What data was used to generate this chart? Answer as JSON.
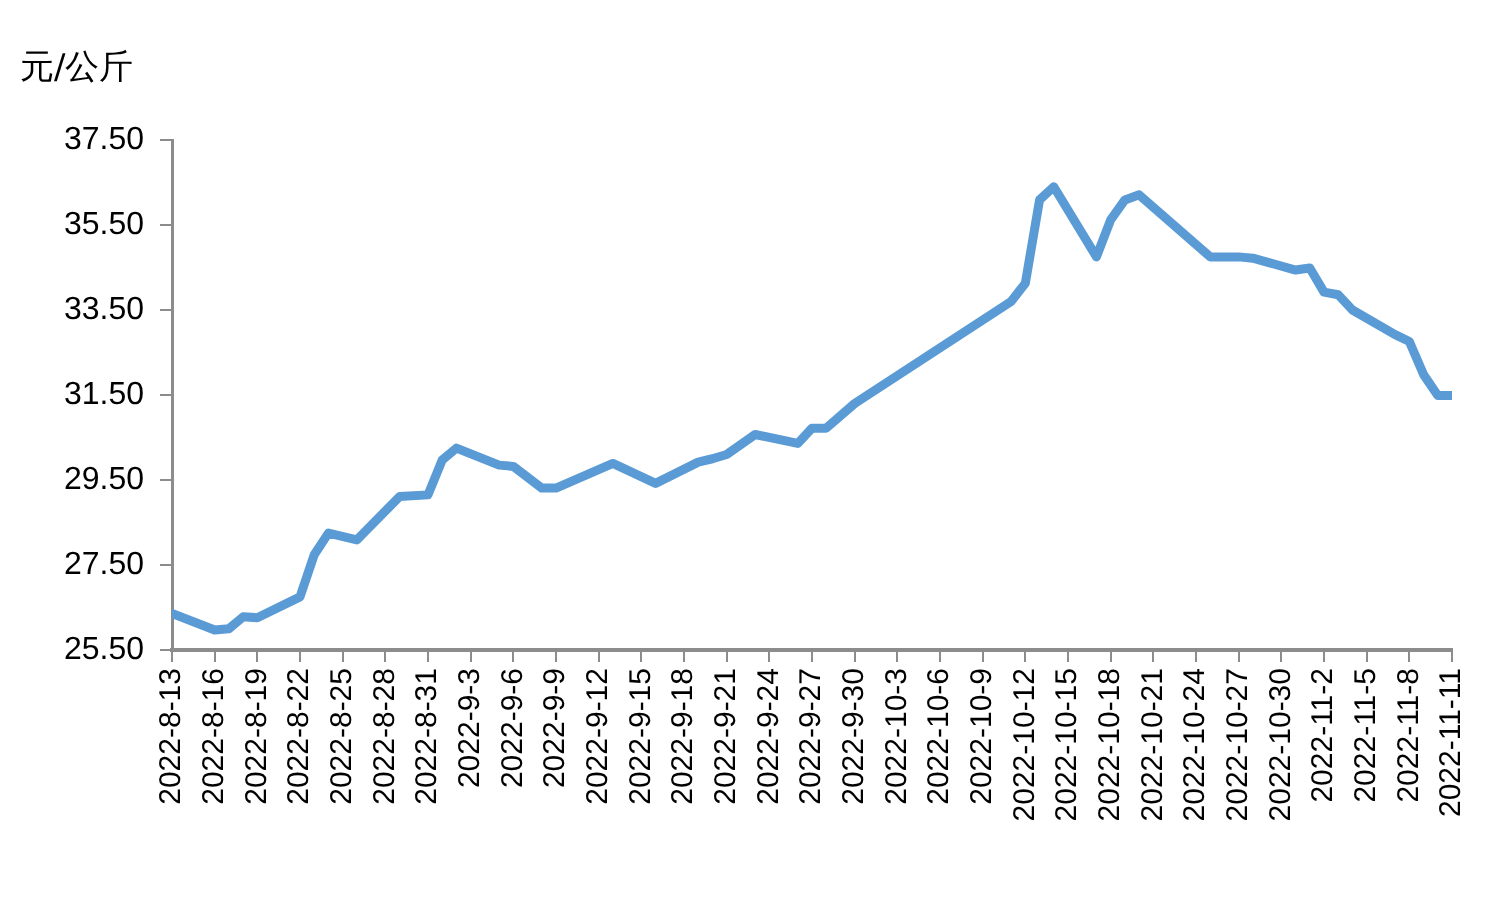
{
  "chart_data": {
    "type": "line",
    "ylabel": "元/公斤",
    "x": [
      "2022-08-13",
      "2022-08-16",
      "2022-08-17",
      "2022-08-18",
      "2022-08-19",
      "2022-08-22",
      "2022-08-23",
      "2022-08-24",
      "2022-08-26",
      "2022-08-29",
      "2022-08-31",
      "2022-09-01",
      "2022-09-02",
      "2022-09-05",
      "2022-09-06",
      "2022-09-08",
      "2022-09-09",
      "2022-09-13",
      "2022-09-16",
      "2022-09-19",
      "2022-09-20",
      "2022-09-21",
      "2022-09-23",
      "2022-09-26",
      "2022-09-27",
      "2022-09-28",
      "2022-09-30",
      "2022-10-11",
      "2022-10-12",
      "2022-10-13",
      "2022-10-14",
      "2022-10-17",
      "2022-10-18",
      "2022-10-19",
      "2022-10-20",
      "2022-10-25",
      "2022-10-27",
      "2022-10-28",
      "2022-10-31",
      "2022-11-01",
      "2022-11-02",
      "2022-11-03",
      "2022-11-04",
      "2022-11-07",
      "2022-11-08",
      "2022-11-09",
      "2022-11-10",
      "2022-11-11"
    ],
    "series": [
      {
        "color": "#5b9bd5",
        "values": [
          26.36,
          25.97,
          26.0,
          26.28,
          26.26,
          26.75,
          27.74,
          28.25,
          28.09,
          29.11,
          29.15,
          29.97,
          30.25,
          29.85,
          29.82,
          29.31,
          29.31,
          29.89,
          29.42,
          29.92,
          30.0,
          30.1,
          30.57,
          30.36,
          30.72,
          30.72,
          31.3,
          33.7,
          34.13,
          36.09,
          36.4,
          34.75,
          35.62,
          36.09,
          36.21,
          34.75,
          34.75,
          34.72,
          34.44,
          34.49,
          33.92,
          33.86,
          33.5,
          32.92,
          32.76,
          31.98,
          31.49,
          31.49
        ]
      }
    ],
    "xlim": [
      "2022-08-13",
      "2022-11-11"
    ],
    "xticks": [
      {
        "value": "2022-08-13",
        "label": "2022-8-13"
      },
      {
        "value": "2022-08-16",
        "label": "2022-8-16"
      },
      {
        "value": "2022-08-19",
        "label": "2022-8-19"
      },
      {
        "value": "2022-08-22",
        "label": "2022-8-22"
      },
      {
        "value": "2022-08-25",
        "label": "2022-8-25"
      },
      {
        "value": "2022-08-28",
        "label": "2022-8-28"
      },
      {
        "value": "2022-08-31",
        "label": "2022-8-31"
      },
      {
        "value": "2022-09-03",
        "label": "2022-9-3"
      },
      {
        "value": "2022-09-06",
        "label": "2022-9-6"
      },
      {
        "value": "2022-09-09",
        "label": "2022-9-9"
      },
      {
        "value": "2022-09-12",
        "label": "2022-9-12"
      },
      {
        "value": "2022-09-15",
        "label": "2022-9-15"
      },
      {
        "value": "2022-09-18",
        "label": "2022-9-18"
      },
      {
        "value": "2022-09-21",
        "label": "2022-9-21"
      },
      {
        "value": "2022-09-24",
        "label": "2022-9-24"
      },
      {
        "value": "2022-09-27",
        "label": "2022-9-27"
      },
      {
        "value": "2022-09-30",
        "label": "2022-9-30"
      },
      {
        "value": "2022-10-03",
        "label": "2022-10-3"
      },
      {
        "value": "2022-10-06",
        "label": "2022-10-6"
      },
      {
        "value": "2022-10-09",
        "label": "2022-10-9"
      },
      {
        "value": "2022-10-12",
        "label": "2022-10-12"
      },
      {
        "value": "2022-10-15",
        "label": "2022-10-15"
      },
      {
        "value": "2022-10-18",
        "label": "2022-10-18"
      },
      {
        "value": "2022-10-21",
        "label": "2022-10-21"
      },
      {
        "value": "2022-10-24",
        "label": "2022-10-24"
      },
      {
        "value": "2022-10-27",
        "label": "2022-10-27"
      },
      {
        "value": "2022-10-30",
        "label": "2022-10-30"
      },
      {
        "value": "2022-11-02",
        "label": "2022-11-2"
      },
      {
        "value": "2022-11-05",
        "label": "2022-11-5"
      },
      {
        "value": "2022-11-08",
        "label": "2022-11-8"
      },
      {
        "value": "2022-11-11",
        "label": "2022-11-11"
      }
    ],
    "ylim": [
      25.5,
      37.5
    ],
    "yticks": [
      {
        "value": 25.5,
        "label": "25.50"
      },
      {
        "value": 27.5,
        "label": "27.50"
      },
      {
        "value": 29.5,
        "label": "29.50"
      },
      {
        "value": 31.5,
        "label": "31.50"
      },
      {
        "value": 33.5,
        "label": "33.50"
      },
      {
        "value": 35.5,
        "label": "35.50"
      },
      {
        "value": 37.5,
        "label": "37.50"
      }
    ]
  }
}
